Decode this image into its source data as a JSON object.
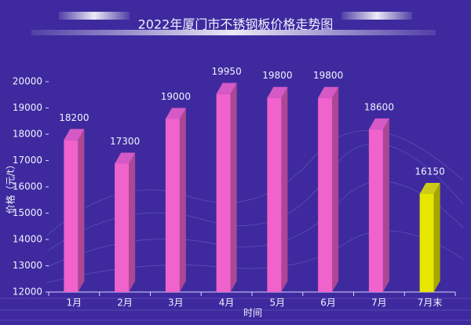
{
  "chart_data": {
    "type": "bar3d",
    "title": "2022年厦门市不锈钢板价格走势图",
    "y_label": "价格（元/t）",
    "x_label": "时间",
    "categories": [
      "1月",
      "2月",
      "3月",
      "4月",
      "5月",
      "6月",
      "7月",
      "7月末"
    ],
    "values": [
      18200,
      17300,
      19000,
      19950,
      19800,
      19800,
      18600,
      16150
    ],
    "colors": [
      "#f062cc",
      "#f062cc",
      "#f062cc",
      "#f062cc",
      "#f062cc",
      "#f062cc",
      "#f062cc",
      "#e6e600"
    ],
    "ylim": [
      12000,
      20000
    ],
    "yticks": [
      12000,
      13000,
      14000,
      15000,
      16000,
      17000,
      18000,
      19000,
      20000
    ]
  }
}
